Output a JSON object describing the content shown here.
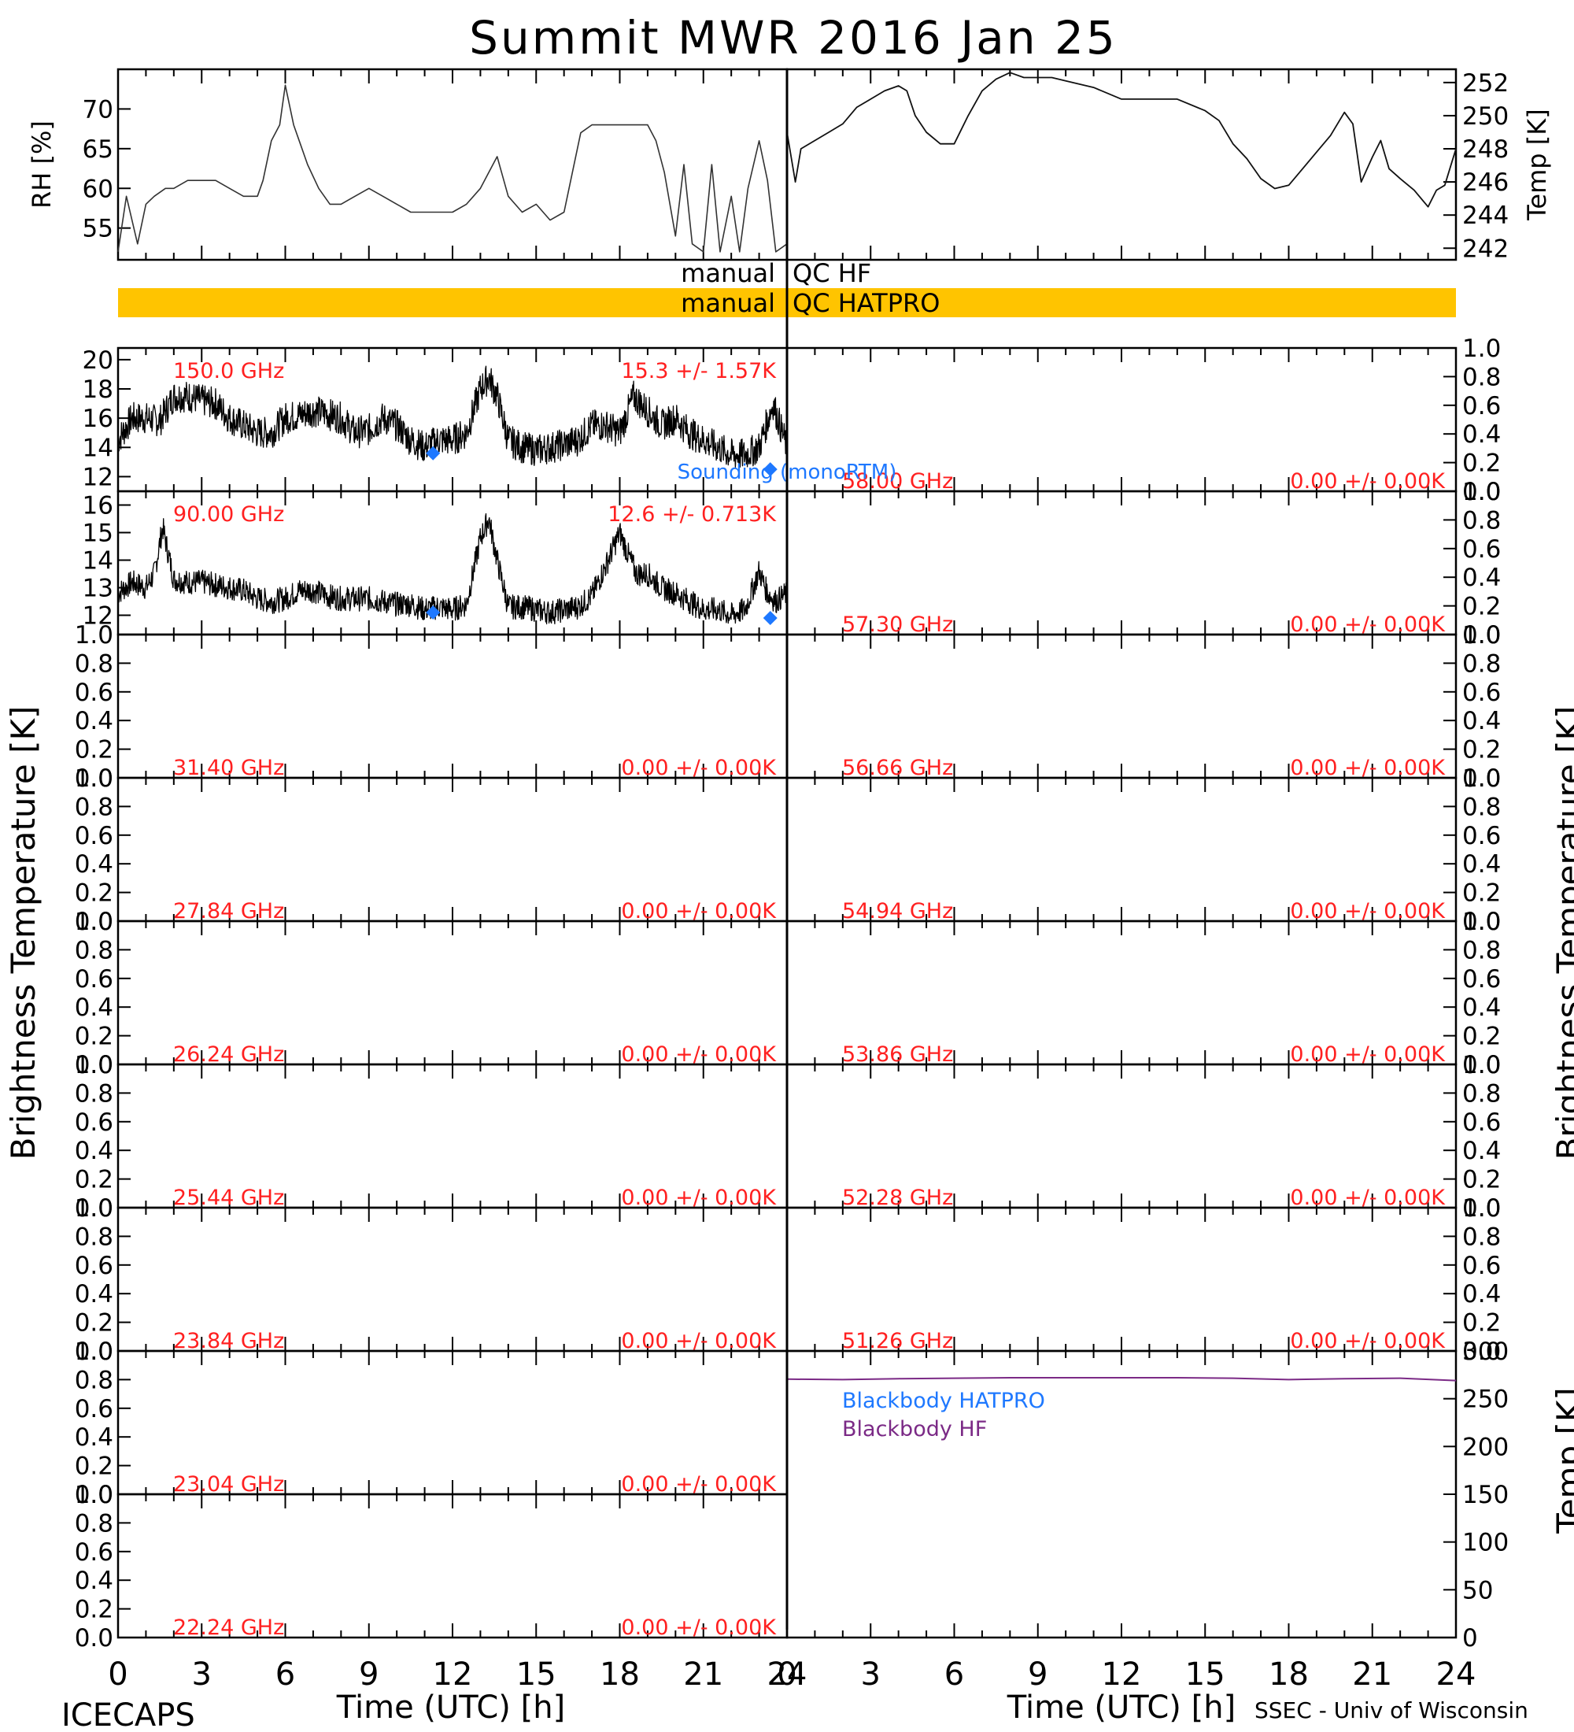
{
  "header": {
    "title": "Summit MWR 2016 Jan 25",
    "footer_left": "ICECAPS",
    "footer_right": "SSEC - Univ of Wisconsin",
    "xlabel_left": "Time (UTC) [h]",
    "xlabel_right": "Time (UTC) [h]",
    "ylabel_left": "Brightness Temperature [K]",
    "ylabel_right": "Brightness Temperature [K]"
  },
  "colors": {
    "label_red": "#ff2020",
    "sonde_blue": "#1e78ff",
    "qc_orange": "#ffc400",
    "bb_purple": "#7b2a86",
    "axis": "#000000"
  },
  "qc": {
    "hf_label_left": "manual",
    "hf_label_right": "QC HF",
    "hatpro_label_left": "manual",
    "hatpro_label_right": "QC HATPRO",
    "hatpro_flag_start_h": 0,
    "hatpro_flag_end_h": 48
  },
  "sounding_label": "Sounding (monoRTM)",
  "chart_data": [
    {
      "id": "rh",
      "type": "line",
      "ylabel": "RH [%]",
      "xlim": [
        0,
        24
      ],
      "ylim": [
        51,
        75
      ],
      "yticks": [
        "55",
        "60",
        "65",
        "70"
      ],
      "x": [
        0,
        0.3,
        0.7,
        1.0,
        1.3,
        1.7,
        2.0,
        2.5,
        3.0,
        3.5,
        4.0,
        4.5,
        5.0,
        5.2,
        5.5,
        5.8,
        6.0,
        6.3,
        6.5,
        6.8,
        7.2,
        7.6,
        8.0,
        8.5,
        9.0,
        9.5,
        10.0,
        10.5,
        11.0,
        11.5,
        12.0,
        12.5,
        13.0,
        13.3,
        13.6,
        14.0,
        14.5,
        15.0,
        15.5,
        16.0,
        16.3,
        16.6,
        17.0,
        17.5,
        18.0,
        18.5,
        19.0,
        19.3,
        19.6,
        20.0,
        20.3,
        20.6,
        21.0,
        21.3,
        21.6,
        22.0,
        22.3,
        22.6,
        23.0,
        23.3,
        23.6,
        24.0
      ],
      "y": [
        52,
        59,
        53,
        58,
        59,
        60,
        60,
        61,
        61,
        61,
        60,
        59,
        59,
        61,
        66,
        68,
        73,
        68,
        66,
        63,
        60,
        58,
        58,
        59,
        60,
        59,
        58,
        57,
        57,
        57,
        57,
        58,
        60,
        62,
        64,
        59,
        57,
        58,
        56,
        57,
        62,
        67,
        68,
        68,
        68,
        68,
        68,
        66,
        62,
        54,
        63,
        53,
        52,
        63,
        52,
        59,
        52,
        60,
        66,
        61,
        52,
        53
      ]
    },
    {
      "id": "temp",
      "type": "line",
      "ylabel": "Temp [K]",
      "xlim": [
        0,
        24
      ],
      "ylim": [
        241.3,
        252.8
      ],
      "yticks": [
        "242",
        "244",
        "246",
        "248",
        "250",
        "252"
      ],
      "x": [
        0,
        0.3,
        0.5,
        1.0,
        1.5,
        2.0,
        2.5,
        3.0,
        3.5,
        4.0,
        4.3,
        4.6,
        5.0,
        5.5,
        6.0,
        6.5,
        7.0,
        7.5,
        8.0,
        8.5,
        9.0,
        9.5,
        10.0,
        11.0,
        12.0,
        13.0,
        14.0,
        15.0,
        15.5,
        16.0,
        16.5,
        17.0,
        17.5,
        18.0,
        18.5,
        19.0,
        19.5,
        20.0,
        20.3,
        20.6,
        21.0,
        21.3,
        21.6,
        22.0,
        22.5,
        23.0,
        23.3,
        23.6,
        24.0
      ],
      "y": [
        249,
        246,
        248,
        248.5,
        249,
        249.5,
        250.5,
        251,
        251.5,
        251.8,
        251.5,
        250,
        249,
        248.3,
        248.3,
        250,
        251.5,
        252.2,
        252.6,
        252.3,
        252.3,
        252.3,
        252.1,
        251.7,
        251,
        251,
        251,
        250.3,
        249.7,
        248.3,
        247.4,
        246.2,
        245.6,
        245.8,
        246.8,
        247.8,
        248.8,
        250.2,
        249.5,
        246,
        247.5,
        248.5,
        246.8,
        246.2,
        245.5,
        244.5,
        245.5,
        245.8,
        248
      ]
    },
    {
      "id": "ch150",
      "type": "line",
      "freq_label": "150.0 GHz",
      "stat_label": "15.3 +/-  1.57K",
      "xlim": [
        0,
        24
      ],
      "ylim": [
        11,
        20.8
      ],
      "yticks": [
        "12",
        "14",
        "16",
        "18",
        "20"
      ],
      "noise_amp": 1.1,
      "x": [
        0,
        0.5,
        1,
        1.5,
        2,
        2.5,
        3,
        3.5,
        4,
        4.5,
        5,
        5.5,
        6,
        6.5,
        7,
        7.5,
        8,
        8.5,
        9,
        9.5,
        10,
        10.5,
        11,
        11.5,
        12,
        12.5,
        13,
        13.3,
        13.6,
        14,
        14.5,
        15,
        15.5,
        16,
        16.5,
        17,
        17.5,
        18,
        18.5,
        19,
        19.5,
        20,
        20.5,
        21,
        21.5,
        22,
        22.5,
        23,
        23.5,
        24
      ],
      "y": [
        14.5,
        16,
        16,
        15.8,
        17.5,
        17.5,
        17.2,
        17,
        16,
        15.5,
        15,
        15,
        16,
        16.2,
        16.5,
        16.3,
        16,
        15,
        15.2,
        16,
        15.5,
        14.5,
        14,
        14.5,
        14.5,
        15,
        18,
        18.8,
        17.5,
        14.5,
        14,
        13.8,
        14,
        14.2,
        14.5,
        15.5,
        15.5,
        15,
        17.5,
        16.5,
        15.5,
        16,
        15,
        14.5,
        14,
        13.5,
        13.5,
        14,
        17,
        14
      ],
      "sonde_points": [
        {
          "x": 11.3,
          "y": 13.6
        },
        {
          "x": 23.4,
          "y": 12.5
        }
      ]
    },
    {
      "id": "ch90",
      "type": "line",
      "freq_label": "90.00 GHz",
      "stat_label": "12.6 +/- 0.713K",
      "xlim": [
        0,
        24
      ],
      "ylim": [
        11.3,
        16.5
      ],
      "yticks": [
        "12",
        "13",
        "14",
        "15",
        "16"
      ],
      "noise_amp": 0.45,
      "x": [
        0,
        0.5,
        1,
        1.3,
        1.6,
        2,
        2.5,
        3,
        3.5,
        4,
        4.5,
        5,
        5.5,
        6,
        6.5,
        7,
        7.5,
        8,
        8.5,
        9,
        9.5,
        10,
        10.5,
        11,
        11.5,
        12,
        12.5,
        13,
        13.3,
        13.6,
        14,
        14.5,
        15,
        15.5,
        16,
        16.5,
        17,
        17.5,
        18,
        18.3,
        18.6,
        19,
        19.5,
        20,
        20.5,
        21,
        21.5,
        22,
        22.5,
        23,
        23.3,
        23.6,
        24
      ],
      "y": [
        12.8,
        13.2,
        13,
        13.5,
        15.2,
        13.3,
        13.2,
        13.2,
        13.1,
        13,
        12.9,
        12.6,
        12.5,
        12.6,
        12.9,
        12.9,
        12.7,
        12.6,
        12.6,
        12.6,
        12.5,
        12.4,
        12.4,
        12.2,
        12.3,
        12.2,
        12.4,
        14.8,
        15.5,
        14,
        12.3,
        12.3,
        12.2,
        12.1,
        12.2,
        12.3,
        12.7,
        13.8,
        15,
        14.2,
        13.5,
        13.5,
        13,
        12.8,
        12.5,
        12.2,
        12.2,
        12,
        12.2,
        13.6,
        12.8,
        12.5,
        12.8
      ],
      "sonde_points": [
        {
          "x": 11.3,
          "y": 12.1
        },
        {
          "x": 23.4,
          "y": 11.9
        }
      ]
    },
    {
      "id": "ch31",
      "type": "line",
      "freq_label": "31.40 GHz",
      "stat_label": "0.00 +/-  0.00K",
      "ylim": [
        0,
        1
      ],
      "yticks": [
        "0.0",
        "0.2",
        "0.4",
        "0.6",
        "0.8",
        "1.0"
      ],
      "x": [],
      "y": []
    },
    {
      "id": "ch27",
      "type": "line",
      "freq_label": "27.84 GHz",
      "stat_label": "0.00 +/-  0.00K",
      "ylim": [
        0,
        1
      ],
      "yticks": [
        "0.0",
        "0.2",
        "0.4",
        "0.6",
        "0.8",
        "1.0"
      ],
      "x": [],
      "y": []
    },
    {
      "id": "ch26",
      "type": "line",
      "freq_label": "26.24 GHz",
      "stat_label": "0.00 +/-  0.00K",
      "ylim": [
        0,
        1
      ],
      "yticks": [
        "0.0",
        "0.2",
        "0.4",
        "0.6",
        "0.8",
        "1.0"
      ],
      "x": [],
      "y": []
    },
    {
      "id": "ch25",
      "type": "line",
      "freq_label": "25.44 GHz",
      "stat_label": "0.00 +/-  0.00K",
      "ylim": [
        0,
        1
      ],
      "yticks": [
        "0.0",
        "0.2",
        "0.4",
        "0.6",
        "0.8",
        "1.0"
      ],
      "x": [],
      "y": []
    },
    {
      "id": "ch23a",
      "type": "line",
      "freq_label": "23.84 GHz",
      "stat_label": "0.00 +/-  0.00K",
      "ylim": [
        0,
        1
      ],
      "yticks": [
        "0.0",
        "0.2",
        "0.4",
        "0.6",
        "0.8",
        "1.0"
      ],
      "x": [],
      "y": []
    },
    {
      "id": "ch23b",
      "type": "line",
      "freq_label": "23.04 GHz",
      "stat_label": "0.00 +/-  0.00K",
      "ylim": [
        0,
        1
      ],
      "yticks": [
        "0.0",
        "0.2",
        "0.4",
        "0.6",
        "0.8",
        "1.0"
      ],
      "x": [],
      "y": []
    },
    {
      "id": "ch22",
      "type": "line",
      "freq_label": "22.24 GHz",
      "stat_label": "0.00 +/-  0.00K",
      "ylim": [
        0,
        1
      ],
      "yticks": [
        "0.0",
        "0.2",
        "0.4",
        "0.6",
        "0.8",
        "1.0"
      ],
      "x": [],
      "y": []
    },
    {
      "id": "ch58",
      "type": "line",
      "freq_label": "58.00 GHz",
      "stat_label": "0.00 +/-  0.00K",
      "ylim": [
        0,
        1
      ],
      "yticks": [
        "0.0",
        "0.2",
        "0.4",
        "0.6",
        "0.8",
        "1.0"
      ],
      "x": [],
      "y": []
    },
    {
      "id": "ch57",
      "type": "line",
      "freq_label": "57.30 GHz",
      "stat_label": "0.00 +/-  0.00K",
      "ylim": [
        0,
        1
      ],
      "yticks": [
        "0.0",
        "0.2",
        "0.4",
        "0.6",
        "0.8",
        "1.0"
      ],
      "x": [],
      "y": []
    },
    {
      "id": "ch56",
      "type": "line",
      "freq_label": "56.66 GHz",
      "stat_label": "0.00 +/-  0.00K",
      "ylim": [
        0,
        1
      ],
      "yticks": [
        "0.0",
        "0.2",
        "0.4",
        "0.6",
        "0.8",
        "1.0"
      ],
      "x": [],
      "y": []
    },
    {
      "id": "ch54",
      "type": "line",
      "freq_label": "54.94 GHz",
      "stat_label": "0.00 +/-  0.00K",
      "ylim": [
        0,
        1
      ],
      "yticks": [
        "0.0",
        "0.2",
        "0.4",
        "0.6",
        "0.8",
        "1.0"
      ],
      "x": [],
      "y": []
    },
    {
      "id": "ch53",
      "type": "line",
      "freq_label": "53.86 GHz",
      "stat_label": "0.00 +/-  0.00K",
      "ylim": [
        0,
        1
      ],
      "yticks": [
        "0.0",
        "0.2",
        "0.4",
        "0.6",
        "0.8",
        "1.0"
      ],
      "x": [],
      "y": []
    },
    {
      "id": "ch52",
      "type": "line",
      "freq_label": "52.28 GHz",
      "stat_label": "0.00 +/-  0.00K",
      "ylim": [
        0,
        1
      ],
      "yticks": [
        "0.0",
        "0.2",
        "0.4",
        "0.6",
        "0.8",
        "1.0"
      ],
      "x": [],
      "y": []
    },
    {
      "id": "ch51",
      "type": "line",
      "freq_label": "51.26 GHz",
      "stat_label": "0.00 +/-  0.00K",
      "ylim": [
        0,
        1
      ],
      "yticks": [
        "0.0",
        "0.2",
        "0.4",
        "0.6",
        "0.8",
        "1.0"
      ],
      "x": [],
      "y": []
    },
    {
      "id": "blackbody",
      "type": "line",
      "ylabel": "Temp [K]",
      "xlim": [
        0,
        24
      ],
      "ylim": [
        0,
        300
      ],
      "yticks": [
        "0",
        "50",
        "100",
        "150",
        "200",
        "250",
        "300"
      ],
      "series": [
        {
          "name": "Blackbody HATPRO",
          "x": [],
          "y": []
        },
        {
          "name": "Blackbody HF",
          "x": [
            0,
            2,
            4,
            6,
            8,
            10,
            12,
            14,
            16,
            18,
            20,
            22,
            24
          ],
          "y": [
            270.5,
            270,
            271,
            271.5,
            272,
            272,
            272,
            272,
            271.5,
            270,
            271,
            271.5,
            269
          ]
        }
      ]
    }
  ],
  "xticks": [
    "0",
    "3",
    "6",
    "9",
    "12",
    "15",
    "18",
    "21",
    "24"
  ]
}
